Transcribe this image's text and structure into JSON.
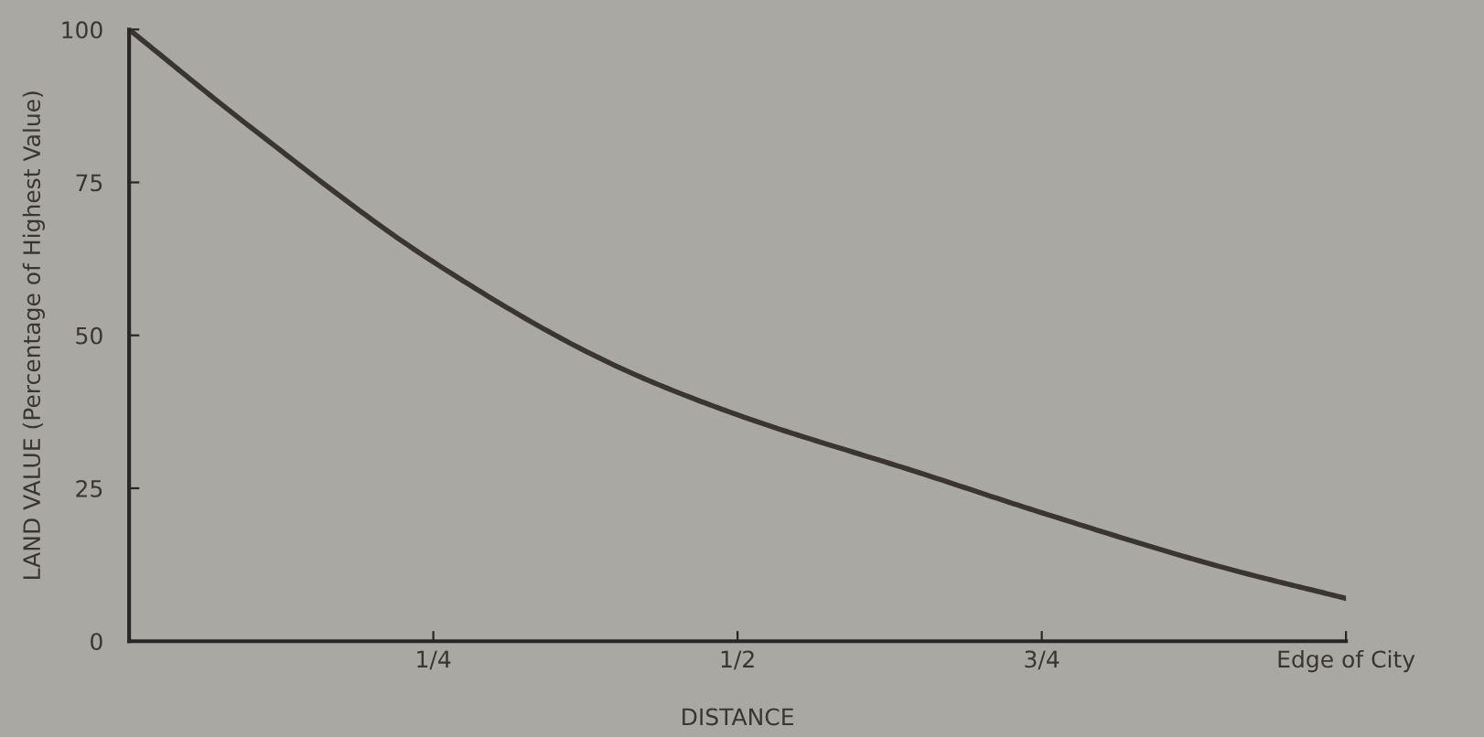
{
  "chart_data": {
    "type": "line",
    "xlabel": "DISTANCE",
    "ylabel": "LAND VALUE (Percentage of Highest Value)",
    "x": [
      0,
      0.1,
      0.25,
      0.4,
      0.5,
      0.65,
      0.75,
      0.9,
      1
    ],
    "series": [
      {
        "color": "#3a3532",
        "values": [
          100,
          84,
          62,
          45,
          37,
          27.5,
          21,
          12,
          7
        ]
      }
    ],
    "xlim": [
      0,
      1
    ],
    "xticks": [
      {
        "value": 0.25,
        "label": "1/4"
      },
      {
        "value": 0.5,
        "label": "1/2"
      },
      {
        "value": 0.75,
        "label": "3/4"
      },
      {
        "value": 1,
        "label": "Edge of City"
      }
    ],
    "ylim": [
      0,
      100
    ],
    "yticks": [
      0,
      25,
      50,
      75,
      100
    ],
    "grid": false,
    "legend": false,
    "marker": "none",
    "line_style": "solid"
  }
}
